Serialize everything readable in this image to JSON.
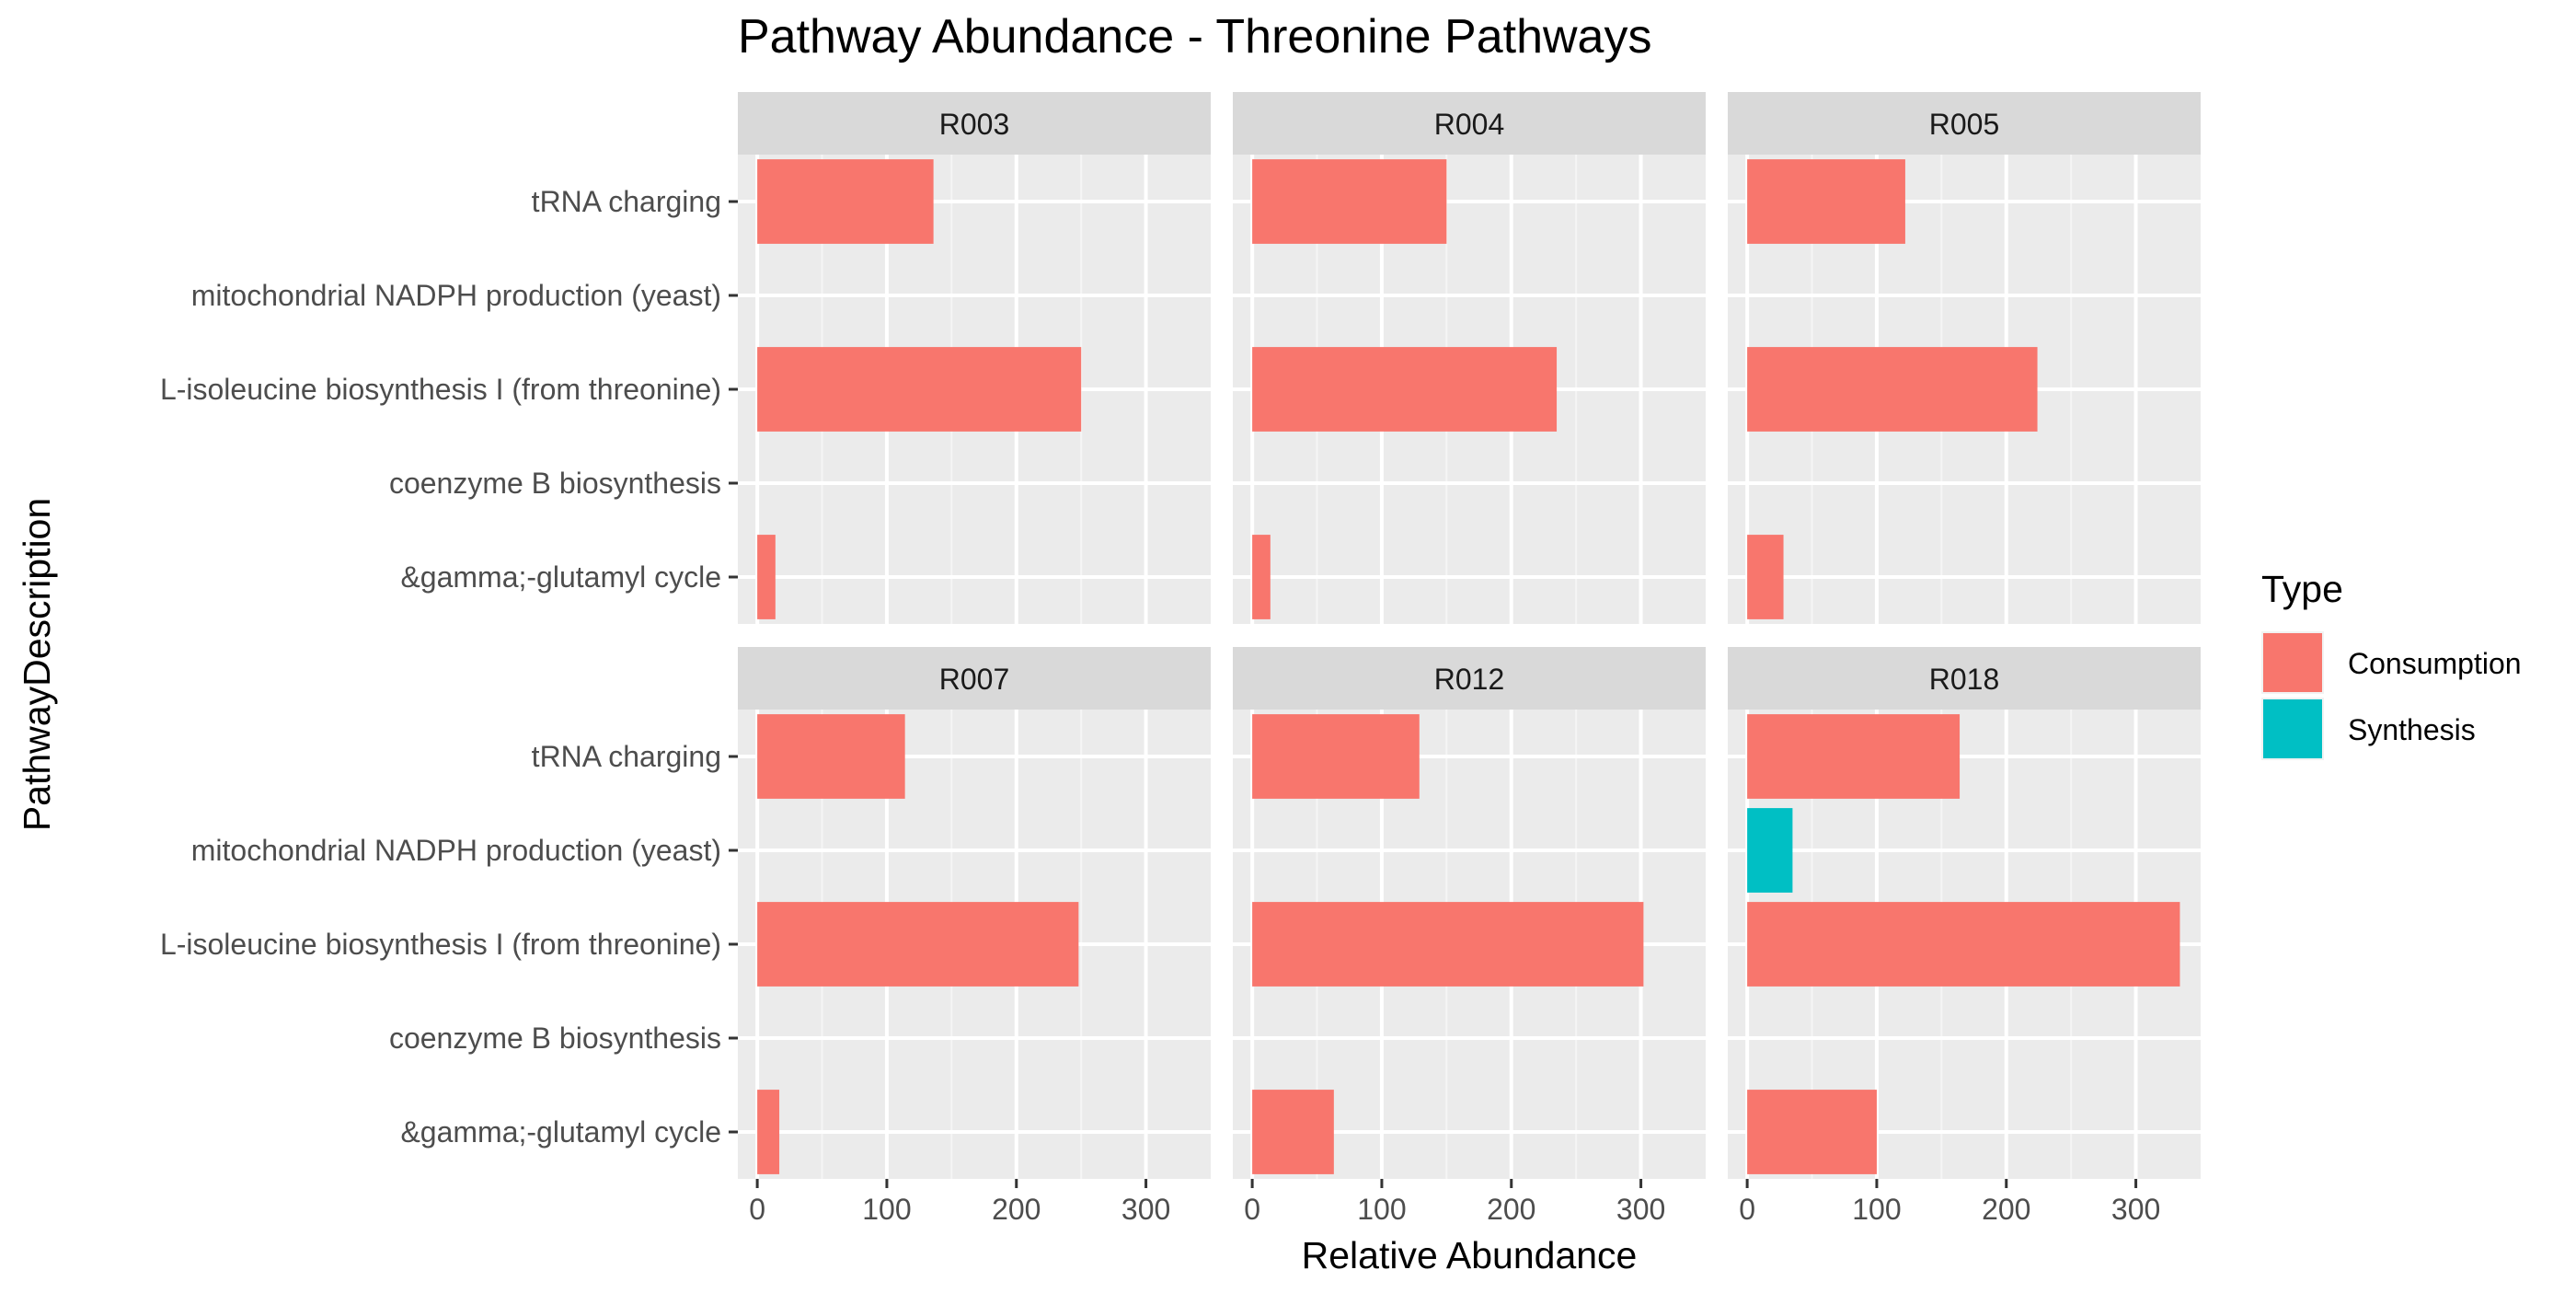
{
  "chart_data": {
    "type": "bar",
    "orientation": "horizontal",
    "title": "Pathway Abundance - Threonine Pathways",
    "xlabel": "Relative Abundance",
    "ylabel": "PathwayDescription",
    "xlim": [
      -15,
      350
    ],
    "xticks": [
      "0",
      "100",
      "200",
      "300"
    ],
    "xtick_values": [
      0,
      100,
      200,
      300
    ],
    "grid": true,
    "legend": {
      "title": "Type",
      "position": "right",
      "entries": [
        {
          "name": "Consumption",
          "color": "#F8766D"
        },
        {
          "name": "Synthesis",
          "color": "#00BFC4"
        }
      ]
    },
    "categories": [
      "tRNA charging",
      "mitochondrial NADPH production (yeast)",
      "L-isoleucine biosynthesis I (from threonine)",
      "coenzyme B biosynthesis",
      "&gamma;-glutamyl cycle"
    ],
    "panels": [
      {
        "name": "R003",
        "bars": [
          {
            "category": "tRNA charging",
            "value": 136,
            "type": "Consumption"
          },
          {
            "category": "L-isoleucine biosynthesis I (from threonine)",
            "value": 250,
            "type": "Consumption"
          },
          {
            "category": "&gamma;-glutamyl cycle",
            "value": 14,
            "type": "Consumption"
          }
        ]
      },
      {
        "name": "R004",
        "bars": [
          {
            "category": "tRNA charging",
            "value": 150,
            "type": "Consumption"
          },
          {
            "category": "L-isoleucine biosynthesis I (from threonine)",
            "value": 235,
            "type": "Consumption"
          },
          {
            "category": "&gamma;-glutamyl cycle",
            "value": 14,
            "type": "Consumption"
          }
        ]
      },
      {
        "name": "R005",
        "bars": [
          {
            "category": "tRNA charging",
            "value": 122,
            "type": "Consumption"
          },
          {
            "category": "L-isoleucine biosynthesis I (from threonine)",
            "value": 224,
            "type": "Consumption"
          },
          {
            "category": "&gamma;-glutamyl cycle",
            "value": 28,
            "type": "Consumption"
          }
        ]
      },
      {
        "name": "R007",
        "bars": [
          {
            "category": "tRNA charging",
            "value": 114,
            "type": "Consumption"
          },
          {
            "category": "L-isoleucine biosynthesis I (from threonine)",
            "value": 248,
            "type": "Consumption"
          },
          {
            "category": "&gamma;-glutamyl cycle",
            "value": 17,
            "type": "Consumption"
          }
        ]
      },
      {
        "name": "R012",
        "bars": [
          {
            "category": "tRNA charging",
            "value": 129,
            "type": "Consumption"
          },
          {
            "category": "L-isoleucine biosynthesis I (from threonine)",
            "value": 302,
            "type": "Consumption"
          },
          {
            "category": "&gamma;-glutamyl cycle",
            "value": 63,
            "type": "Consumption"
          }
        ]
      },
      {
        "name": "R018",
        "bars": [
          {
            "category": "tRNA charging",
            "value": 164,
            "type": "Consumption"
          },
          {
            "category": "mitochondrial NADPH production (yeast)",
            "value": 35,
            "type": "Synthesis"
          },
          {
            "category": "L-isoleucine biosynthesis I (from threonine)",
            "value": 334,
            "type": "Consumption"
          },
          {
            "category": "&gamma;-glutamyl cycle",
            "value": 100,
            "type": "Consumption"
          }
        ]
      }
    ]
  }
}
